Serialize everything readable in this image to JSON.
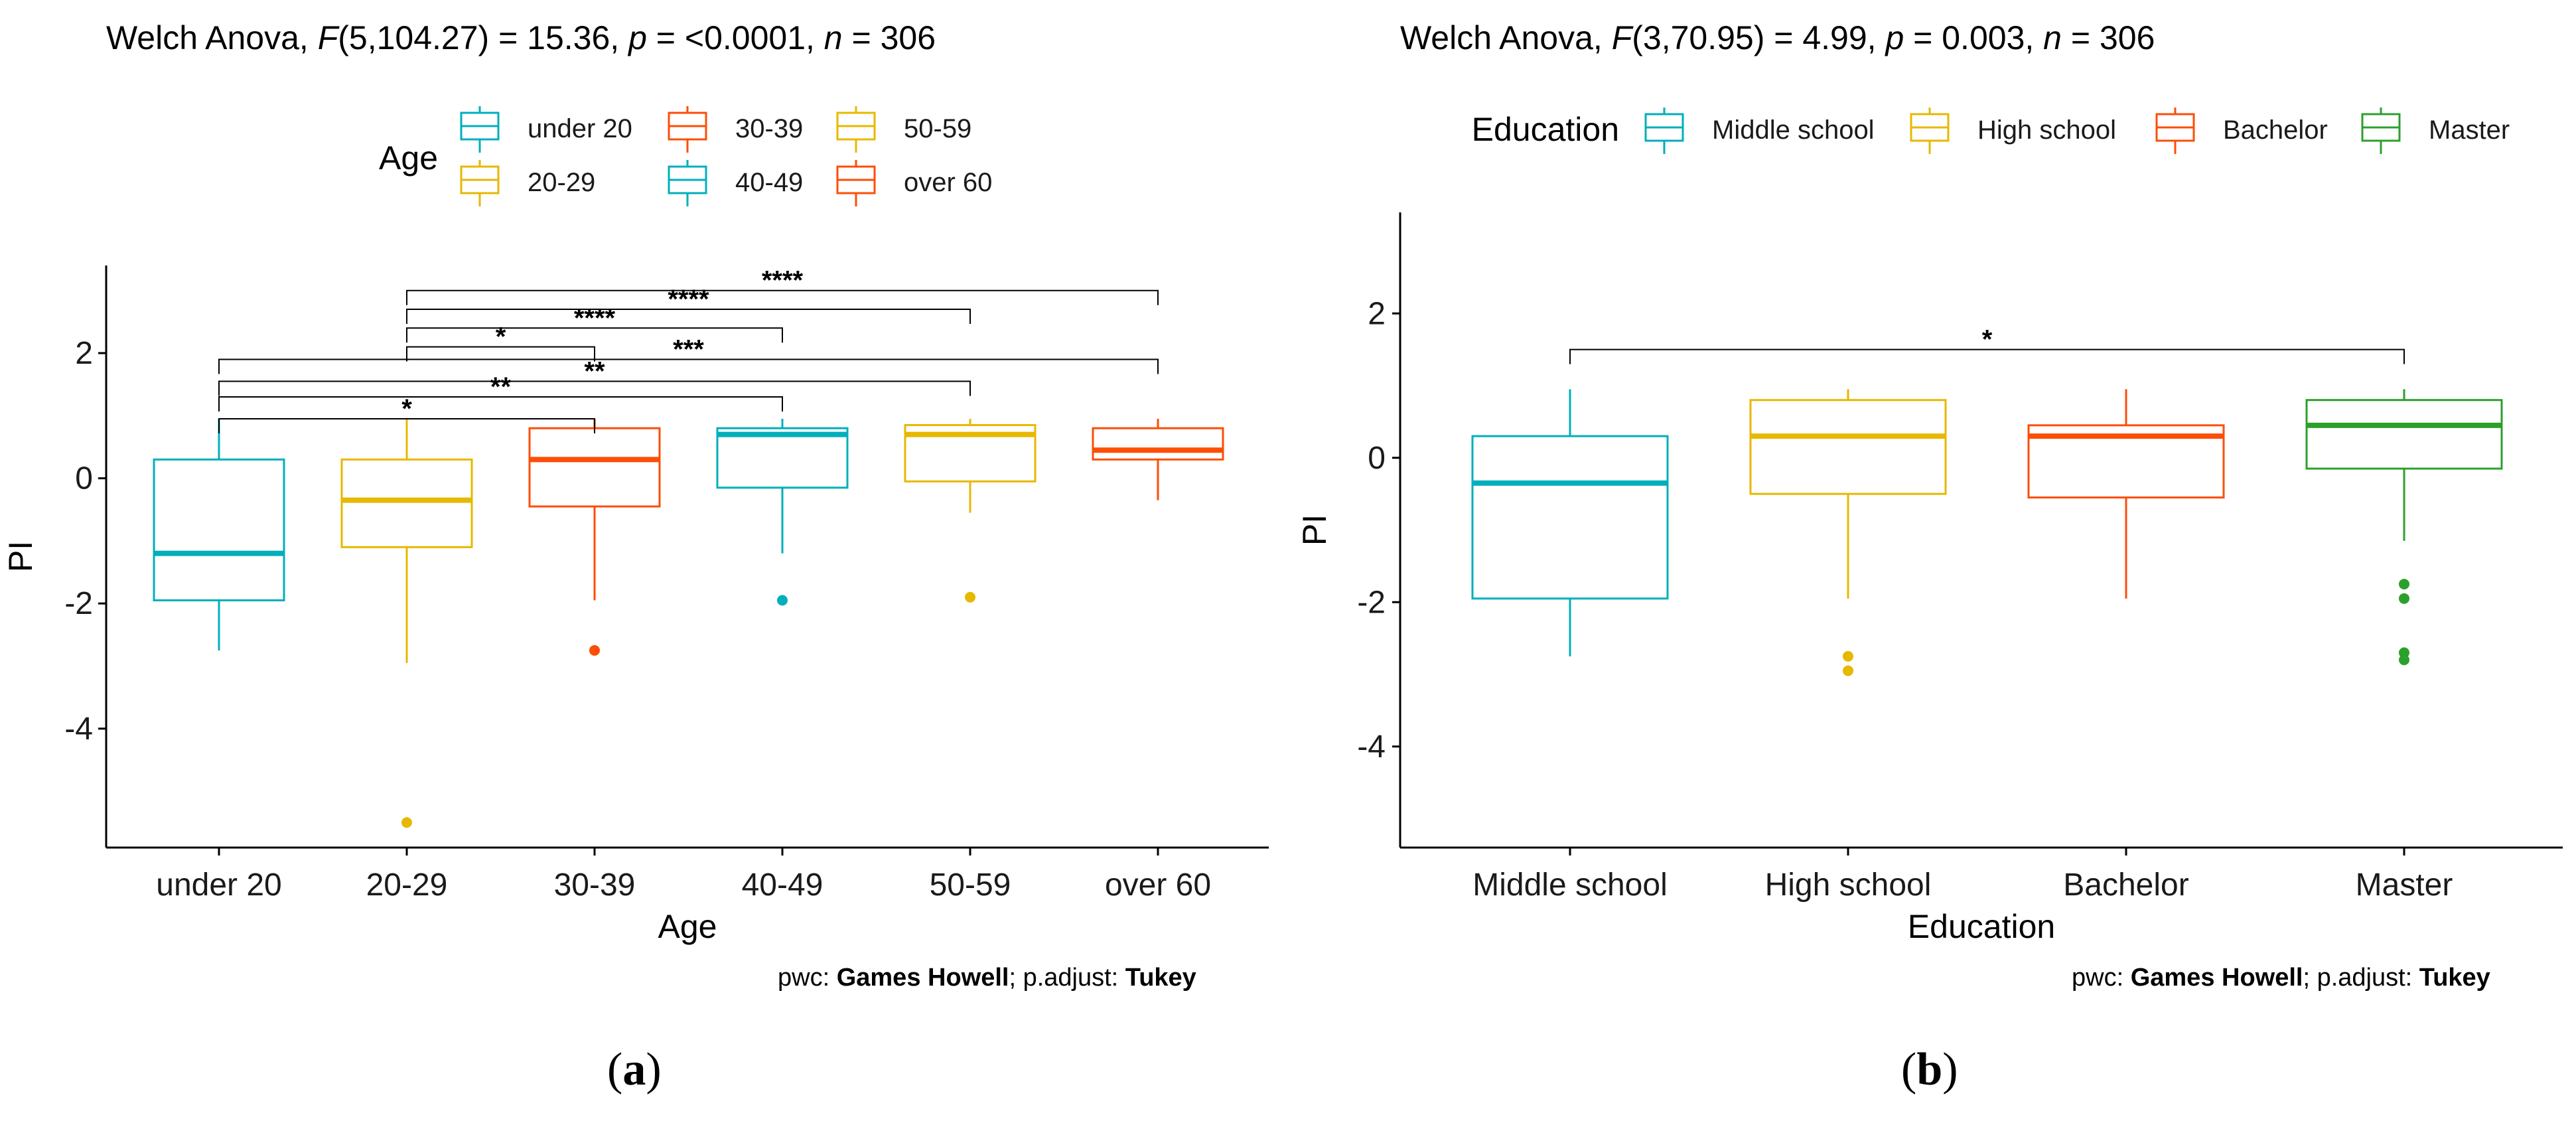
{
  "colors": {
    "teal": "#00AFBB",
    "gold": "#E7B800",
    "orange": "#FC4E07",
    "green": "#2CA02C"
  },
  "figure": {
    "panel_a_label": "a",
    "panel_b_label": "b"
  },
  "chart_data": [
    {
      "type": "box",
      "id": "a",
      "title": {
        "pre": "Welch Anova, ",
        "F": "F",
        "f_args": "(5,104.27) = 15.36, ",
        "p": "p",
        "p_val": " = <0.0001, ",
        "n": "n",
        "n_val": " = 306"
      },
      "xlabel": "Age",
      "ylabel": "PI",
      "ylim": [
        -5.9,
        3.4
      ],
      "yticks": [
        2,
        0,
        -2,
        -4
      ],
      "ytick_labels": [
        "2",
        "0",
        "-2",
        "-4"
      ],
      "legend_title": "Age",
      "categories": [
        "under 20",
        "20-29",
        "30-39",
        "40-49",
        "50-59",
        "over 60"
      ],
      "category_colors": [
        "#00AFBB",
        "#E7B800",
        "#FC4E07",
        "#00AFBB",
        "#E7B800",
        "#FC4E07"
      ],
      "boxes": [
        {
          "lo": -2.75,
          "q1": -1.95,
          "med": -1.2,
          "q3": 0.3,
          "hi": 0.95,
          "outliers": []
        },
        {
          "lo": -2.95,
          "q1": -1.1,
          "med": -0.35,
          "q3": 0.3,
          "hi": 0.95,
          "outliers": [
            -5.5
          ]
        },
        {
          "lo": -1.95,
          "q1": -0.45,
          "med": 0.3,
          "q3": 0.8,
          "hi": 0.95,
          "outliers": [
            -2.75
          ]
        },
        {
          "lo": -1.2,
          "q1": -0.15,
          "med": 0.7,
          "q3": 0.8,
          "hi": 0.95,
          "outliers": [
            -1.95
          ]
        },
        {
          "lo": -0.55,
          "q1": -0.05,
          "med": 0.7,
          "q3": 0.85,
          "hi": 0.95,
          "outliers": [
            -1.9
          ]
        },
        {
          "lo": -0.35,
          "q1": 0.3,
          "med": 0.45,
          "q3": 0.8,
          "hi": 0.95,
          "outliers": []
        }
      ],
      "comparisons": [
        {
          "from": 0,
          "to": 2,
          "y": 0.95,
          "label": "*"
        },
        {
          "from": 0,
          "to": 3,
          "y": 1.3,
          "label": "**"
        },
        {
          "from": 0,
          "to": 4,
          "y": 1.55,
          "label": "**"
        },
        {
          "from": 0,
          "to": 5,
          "y": 1.9,
          "label": "***"
        },
        {
          "from": 1,
          "to": 2,
          "y": 2.1,
          "label": "*"
        },
        {
          "from": 1,
          "to": 3,
          "y": 2.4,
          "label": "****"
        },
        {
          "from": 1,
          "to": 4,
          "y": 2.7,
          "label": "****"
        },
        {
          "from": 1,
          "to": 5,
          "y": 3.0,
          "label": "****"
        }
      ],
      "caption": {
        "pwc": "pwc: ",
        "method": "Games Howell",
        "sep": "; p.adjust: ",
        "adjust": "Tukey"
      }
    },
    {
      "type": "box",
      "id": "b",
      "title": {
        "pre": "Welch Anova, ",
        "F": "F",
        "f_args": "(3,70.95) = 4.99, ",
        "p": "p",
        "p_val": " = 0.003, ",
        "n": "n",
        "n_val": " = 306"
      },
      "xlabel": "Education",
      "ylabel": "PI",
      "ylim": [
        -5.4,
        3.4
      ],
      "yticks": [
        2,
        0,
        -2,
        -4
      ],
      "ytick_labels": [
        "2",
        "0",
        "-2",
        "-4"
      ],
      "legend_title": "Education",
      "categories": [
        "Middle school",
        "High school",
        "Bachelor",
        "Master"
      ],
      "category_colors": [
        "#00AFBB",
        "#E7B800",
        "#FC4E07",
        "#2CA02C"
      ],
      "boxes": [
        {
          "lo": -2.75,
          "q1": -1.95,
          "med": -0.35,
          "q3": 0.3,
          "hi": 0.95,
          "outliers": []
        },
        {
          "lo": -1.95,
          "q1": -0.5,
          "med": 0.3,
          "q3": 0.8,
          "hi": 0.95,
          "outliers": [
            -2.75,
            -2.95
          ]
        },
        {
          "lo": -1.95,
          "q1": -0.55,
          "med": 0.3,
          "q3": 0.45,
          "hi": 0.95,
          "outliers": []
        },
        {
          "lo": -1.15,
          "q1": -0.15,
          "med": 0.45,
          "q3": 0.8,
          "hi": 0.95,
          "outliers": [
            -1.75,
            -1.95,
            -2.7,
            -2.8
          ]
        }
      ],
      "comparisons": [
        {
          "from": 0,
          "to": 3,
          "y": 1.5,
          "label": "*"
        }
      ],
      "caption": {
        "pwc": "pwc: ",
        "method": "Games Howell",
        "sep": "; p.adjust: ",
        "adjust": "Tukey"
      }
    }
  ]
}
